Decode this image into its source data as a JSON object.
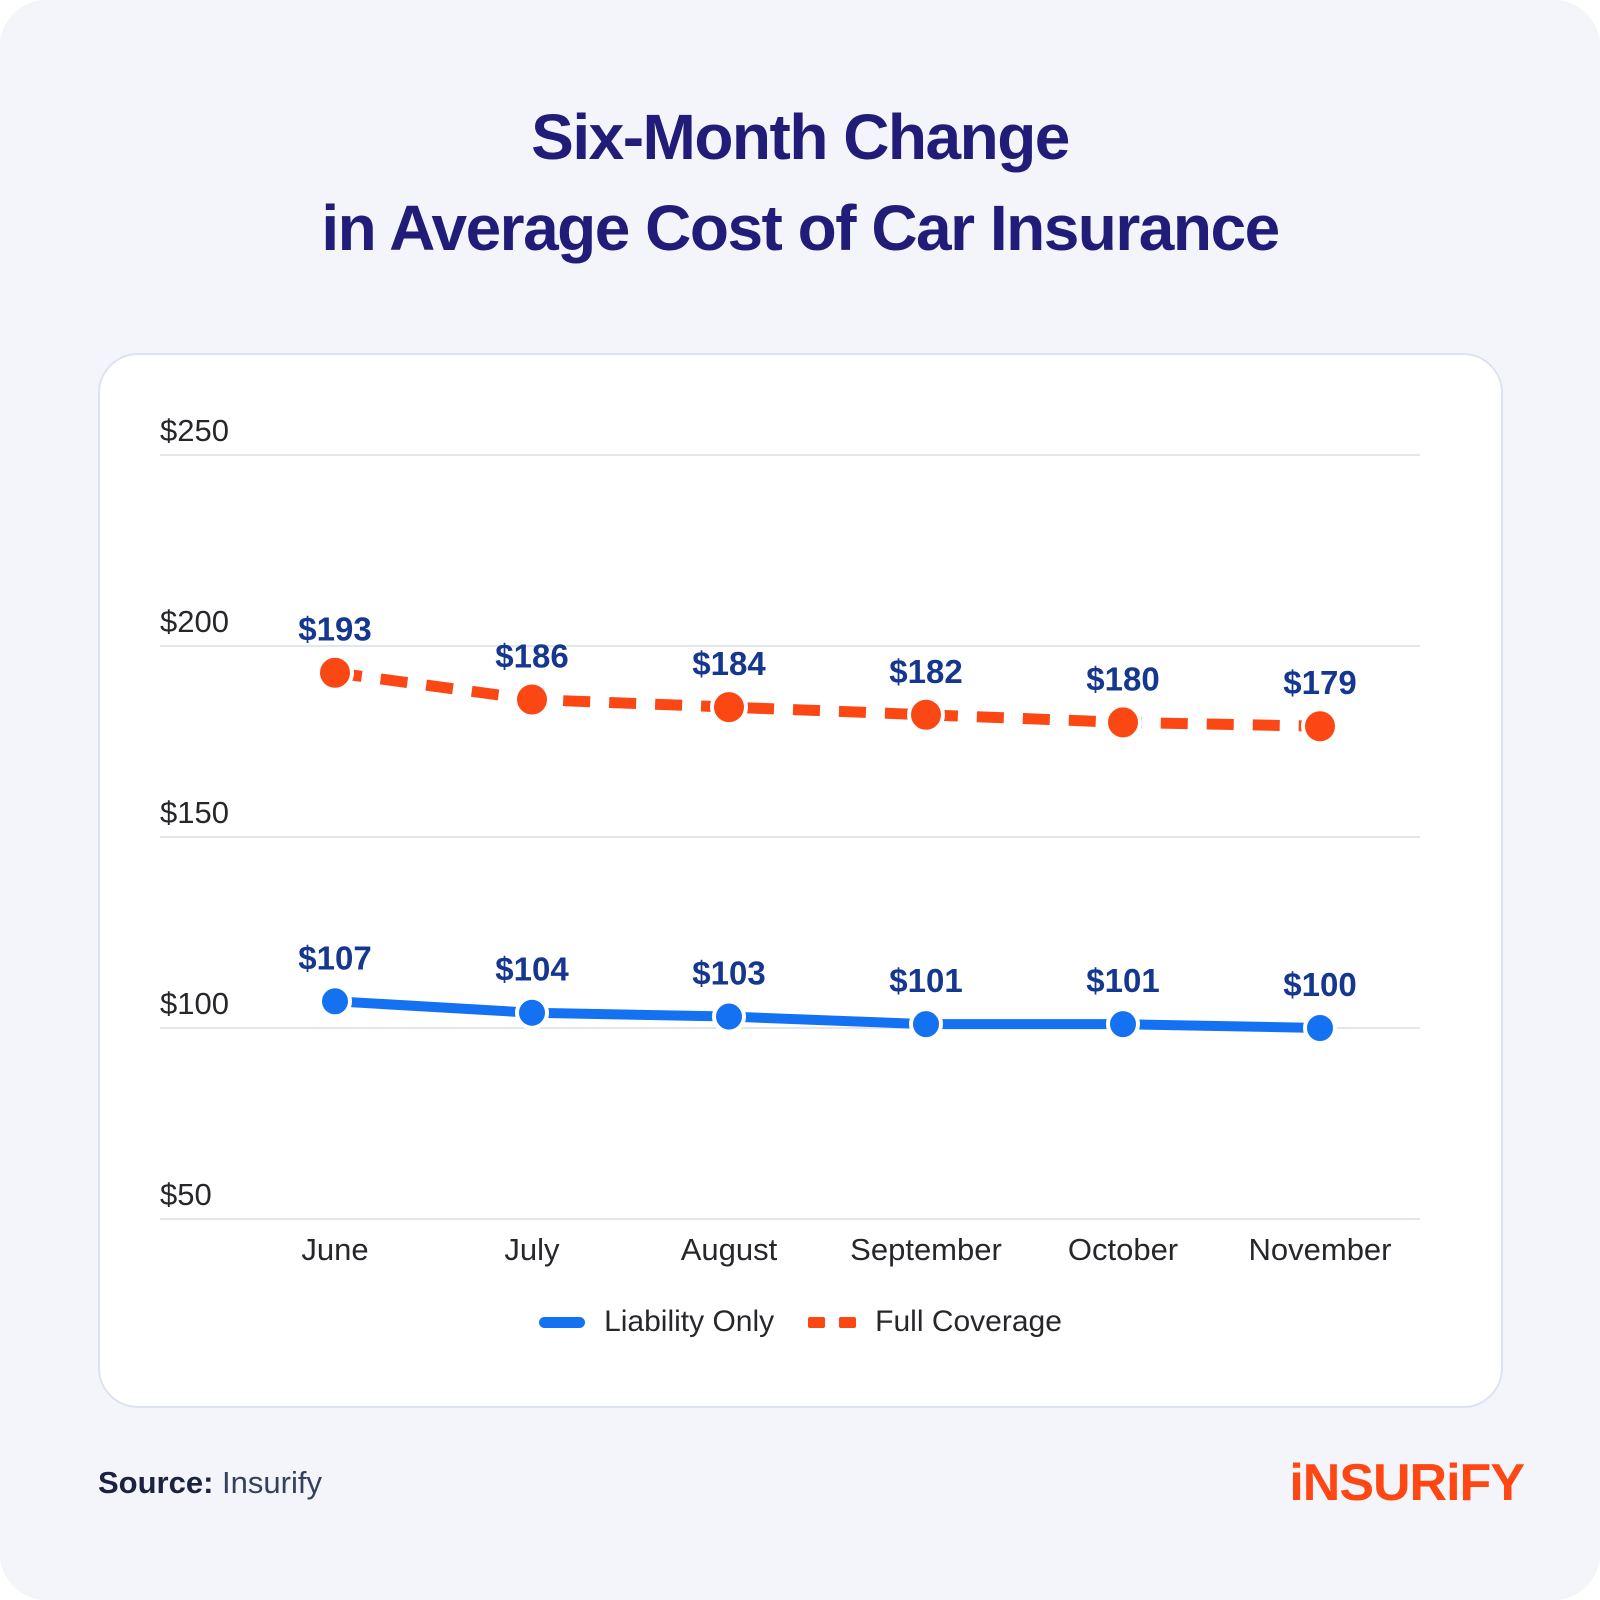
{
  "title": {
    "line1": "Six-Month Change",
    "line2": "in Average Cost of Car Insurance"
  },
  "source": {
    "label": "Source:",
    "value": "Insurify"
  },
  "logo": {
    "text": "iNSURiFY"
  },
  "colors": {
    "background": "#F4F5FA",
    "card": "#FFFFFF",
    "card_border": "#DCE2F0",
    "title": "#211C78",
    "value_label": "#16378F",
    "liability": "#1471F2",
    "full_coverage": "#FB4713",
    "grid": "#E3E6ED",
    "axis_text": "#26272B",
    "logo_orange": "#FF4713"
  },
  "chart_data": {
    "type": "line",
    "title": "Six-Month Change in Average Cost of Car Insurance",
    "categories": [
      "June",
      "July",
      "August",
      "September",
      "October",
      "November"
    ],
    "series": [
      {
        "name": "Liability Only",
        "values": [
          107,
          104,
          103,
          101,
          101,
          100
        ],
        "color_key": "liability",
        "style": "solid"
      },
      {
        "name": "Full Coverage",
        "values": [
          193,
          186,
          184,
          182,
          180,
          179
        ],
        "color_key": "full_coverage",
        "style": "dashed"
      }
    ],
    "y_ticks": [
      {
        "label": "$250",
        "value": 250
      },
      {
        "label": "$200",
        "value": 200
      },
      {
        "label": "$150",
        "value": 150
      },
      {
        "label": "$100",
        "value": 100
      },
      {
        "label": "$50",
        "value": 50
      }
    ],
    "ylim": [
      37,
      255
    ],
    "value_label_prefix": "$",
    "grid": "horizontal",
    "legend_position": "bottom"
  }
}
